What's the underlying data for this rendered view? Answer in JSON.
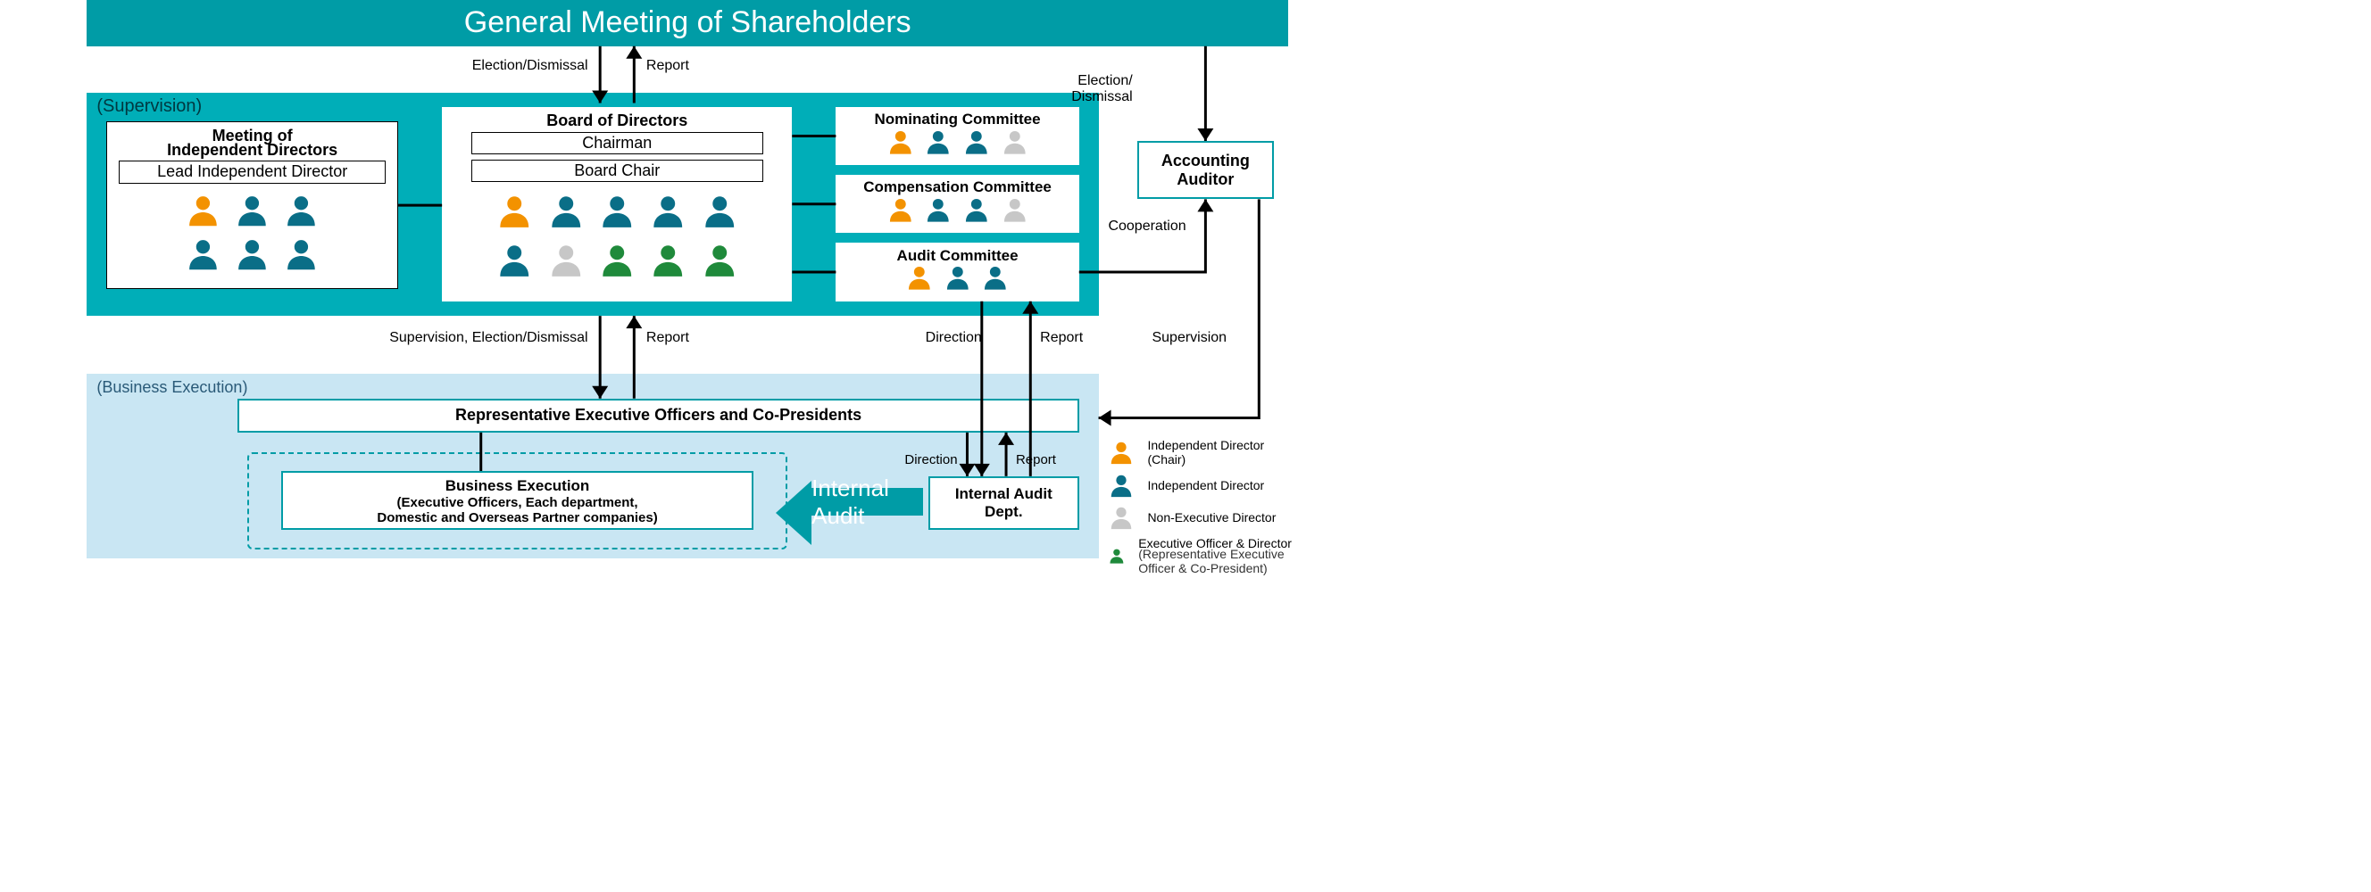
{
  "colors": {
    "teal": "#009ca6",
    "supervision_bg": "#00aeb8",
    "exec_bg": "#c9e6f3",
    "orange": "#f39200",
    "teal_person": "#0a6e87",
    "grey": "#c7c7c7",
    "green": "#1f8a3b",
    "text": "#000000"
  },
  "top_banner": {
    "label": "General Meeting of Shareholders"
  },
  "arrows": {
    "a1_left": "Election/Dismissal",
    "a1_right": "Report",
    "a2_left": "Supervision, Election/Dismissal",
    "a2_right": "Report",
    "a3": "Election/\nDismissal",
    "a4": "Cooperation",
    "a5_left": "Direction",
    "a5_right": "Report",
    "a6_left": "Direction",
    "a6_right": "Report",
    "a7": "Supervision",
    "a8": "Internal Audit"
  },
  "supervision": {
    "section_label": "(Supervision)",
    "meeting_ind": {
      "title_l1": "Meeting of",
      "title_l2": "Independent Directors",
      "sub": "Lead Independent Director",
      "row1": [
        "orange",
        "teal",
        "teal"
      ],
      "row2": [
        "teal",
        "teal",
        "teal"
      ]
    },
    "board": {
      "title": "Board of Directors",
      "sub1": "Chairman",
      "sub2": "Board Chair",
      "row1": [
        "orange",
        "teal",
        "teal",
        "teal",
        "teal"
      ],
      "row2": [
        "teal",
        "grey",
        "green",
        "green",
        "green"
      ]
    },
    "nominating": {
      "title": "Nominating Committee",
      "row": [
        "orange",
        "teal",
        "teal",
        "grey"
      ]
    },
    "compensation": {
      "title": "Compensation Committee",
      "row": [
        "orange",
        "teal",
        "teal",
        "grey"
      ]
    },
    "audit_committee": {
      "title": "Audit Committee",
      "row": [
        "orange",
        "teal",
        "teal"
      ]
    }
  },
  "exec": {
    "section_label": "(Business Execution)",
    "rep": "Representative Executive Officers and Co-Presidents",
    "biz_l1": "Business Execution",
    "biz_l2": "(Executive Officers, Each department,",
    "biz_l3": "Domestic and Overseas Partner companies)",
    "internal_audit_dept_l1": "Internal Audit",
    "internal_audit_dept_l2": "Dept."
  },
  "acct_auditor": {
    "l1": "Accounting",
    "l2": "Auditor"
  },
  "legend": {
    "items": [
      {
        "color": "orange",
        "label": "Independent Director\n(Chair)"
      },
      {
        "color": "teal",
        "label": "Independent Director"
      },
      {
        "color": "grey",
        "label": "Non-Executive Director"
      },
      {
        "color": "green",
        "label": "Executive Officer & Director",
        "sub": "(Representative Executive Officer & Co-President)"
      }
    ]
  }
}
